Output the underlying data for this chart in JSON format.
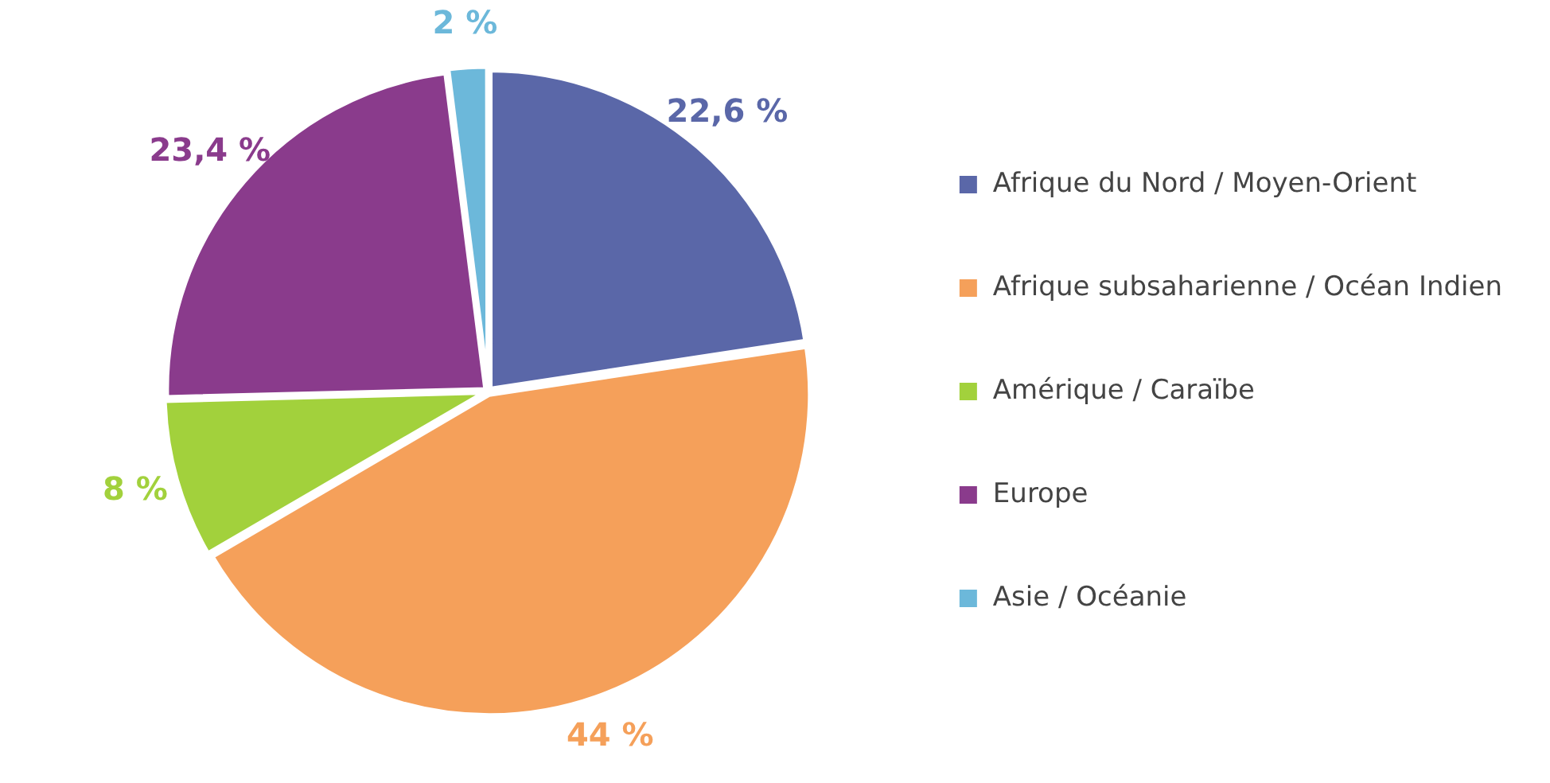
{
  "chart_data": {
    "type": "pie",
    "categories": [
      "Afrique du Nord / Moyen-Orient",
      "Afrique subsaharienne / Océan Indien",
      "Amérique / Caraïbe",
      "Europe",
      "Asie / Océanie"
    ],
    "values": [
      22.6,
      44,
      8,
      23.4,
      2
    ],
    "value_labels": [
      "22,6 %",
      "44 %",
      "8 %",
      "23,4 %",
      "2 %"
    ],
    "colors": [
      "#5a67a8",
      "#f5a05a",
      "#a2d13c",
      "#8a3b8c",
      "#6cb8da"
    ],
    "legend": "right"
  }
}
